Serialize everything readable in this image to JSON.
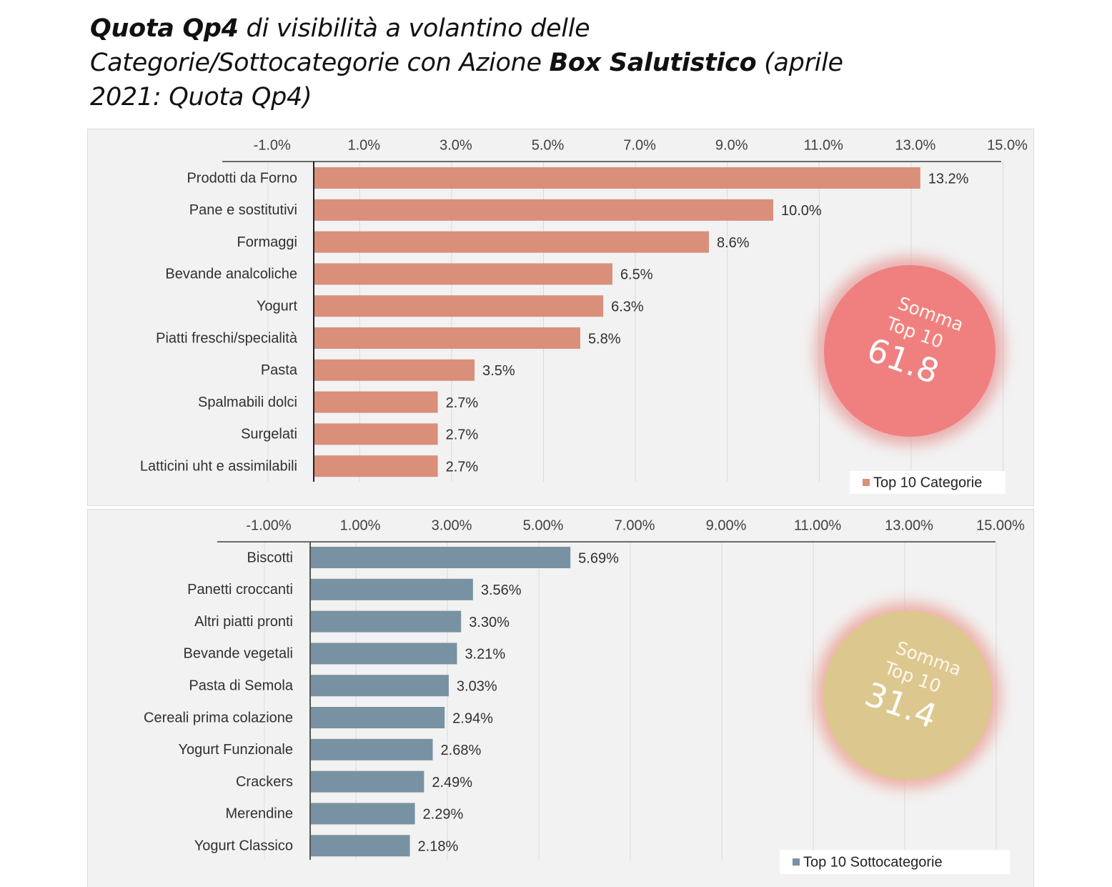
{
  "title": {
    "part1_bold": "Quota Qp4",
    "part2": " di visibilità a volantino delle",
    "part3": "Categorie/Sottocategorie con Azione ",
    "part4_bold": "Box Salutistico",
    "part5": " (aprile",
    "part6": "2021: Quota Qp4)"
  },
  "chart_data": [
    {
      "type": "bar",
      "orientation": "horizontal",
      "title": "",
      "xlabel": "",
      "ylabel": "",
      "xlim": [
        -1.0,
        15.0
      ],
      "tick_values": [
        -1,
        1,
        3,
        5,
        7,
        9,
        11,
        13,
        15
      ],
      "tick_labels": [
        "-1.0%",
        "1.0%",
        "3.0%",
        "5.0%",
        "7.0%",
        "9.0%",
        "11.0%",
        "13.0%",
        "15.0%"
      ],
      "tick_position": "top",
      "grid": true,
      "categories": [
        "Prodotti da Forno",
        "Pane e sostitutivi",
        "Formaggi",
        "Bevande analcoliche",
        "Yogurt",
        "Piatti freschi/specialità",
        "Pasta",
        "Spalmabili dolci",
        "Surgelati",
        "Latticini uht e assimilabili"
      ],
      "values": [
        13.2,
        10.0,
        8.6,
        6.5,
        6.3,
        5.8,
        3.5,
        2.7,
        2.7,
        2.7
      ],
      "value_labels": [
        "13.2%",
        "10.0%",
        "8.6%",
        "6.5%",
        "6.3%",
        "5.8%",
        "3.5%",
        "2.7%",
        "2.7%",
        "2.7%"
      ],
      "series_name": "Top 10 Categorie",
      "color": "#d98f7a",
      "legend_position": "bottom-right",
      "annotation": {
        "line1": "Somma",
        "line2": "Top 10",
        "value": "61.8",
        "color": "#f08080",
        "glow": "#e8a0a0"
      }
    },
    {
      "type": "bar",
      "orientation": "horizontal",
      "title": "",
      "xlabel": "",
      "ylabel": "",
      "xlim": [
        -1.0,
        15.0
      ],
      "tick_values": [
        -1,
        1,
        3,
        5,
        7,
        9,
        11,
        13,
        15
      ],
      "tick_labels": [
        "-1.00%",
        "1.00%",
        "3.00%",
        "5.00%",
        "7.00%",
        "9.00%",
        "11.00%",
        "13.00%",
        "15.00%"
      ],
      "tick_position": "top",
      "grid": true,
      "categories": [
        "Biscotti",
        "Panetti croccanti",
        "Altri piatti pronti",
        "Bevande vegetali",
        "Pasta di Semola",
        "Cereali prima colazione",
        "Yogurt Funzionale",
        "Crackers",
        "Merendine",
        "Yogurt Classico"
      ],
      "values": [
        5.69,
        3.56,
        3.3,
        3.21,
        3.03,
        2.94,
        2.68,
        2.49,
        2.29,
        2.18
      ],
      "value_labels": [
        "5.69%",
        "3.56%",
        "3.30%",
        "3.21%",
        "3.03%",
        "2.94%",
        "2.68%",
        "2.49%",
        "2.29%",
        "2.18%"
      ],
      "series_name": "Top 10 Sottocategorie",
      "color": "#7892a3",
      "legend_position": "bottom-right",
      "annotation": {
        "line1": "Somma",
        "line2": "Top 10",
        "value": "31.4",
        "color": "#dcc88e",
        "glow": "#eba59a"
      }
    }
  ]
}
